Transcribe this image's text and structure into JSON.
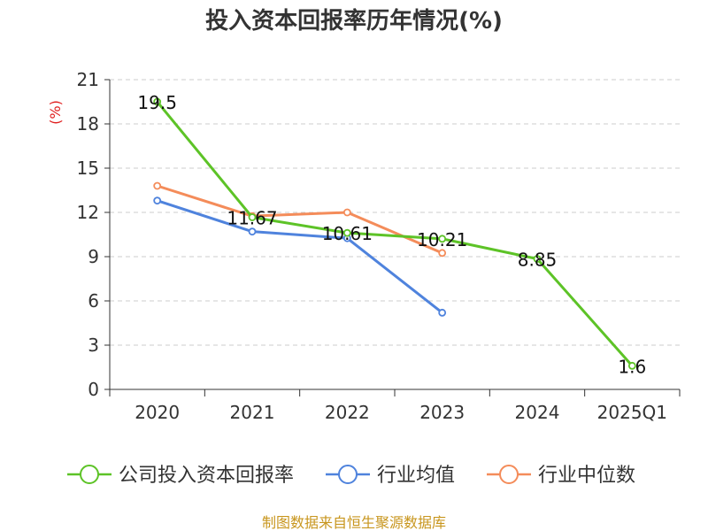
{
  "chart_data": {
    "type": "line",
    "title": "投入资本回报率历年情况(%)",
    "ylabel": "(%)",
    "xlabel": "",
    "categories": [
      "2020",
      "2021",
      "2022",
      "2023",
      "2024",
      "2025Q1"
    ],
    "yticks": [
      0,
      3,
      6,
      9,
      12,
      15,
      18,
      21
    ],
    "ylim": [
      0,
      21
    ],
    "grid": true,
    "legend_position": "bottom",
    "series": [
      {
        "name": "公司投入资本回报率",
        "color": "#5dc327",
        "values": [
          19.5,
          11.67,
          10.61,
          10.21,
          8.85,
          1.6
        ],
        "labels": [
          "19.5",
          "11.67",
          "10.61",
          "10.21",
          "8.85",
          "1.6"
        ]
      },
      {
        "name": "行业均值",
        "color": "#4f83dd",
        "values": [
          12.8,
          10.7,
          10.25,
          5.2,
          null,
          null
        ],
        "labels": []
      },
      {
        "name": "行业中位数",
        "color": "#f48c5a",
        "values": [
          13.8,
          11.75,
          12.0,
          9.25,
          null,
          null
        ],
        "labels": []
      }
    ],
    "source": "制图数据来自恒生聚源数据库"
  }
}
